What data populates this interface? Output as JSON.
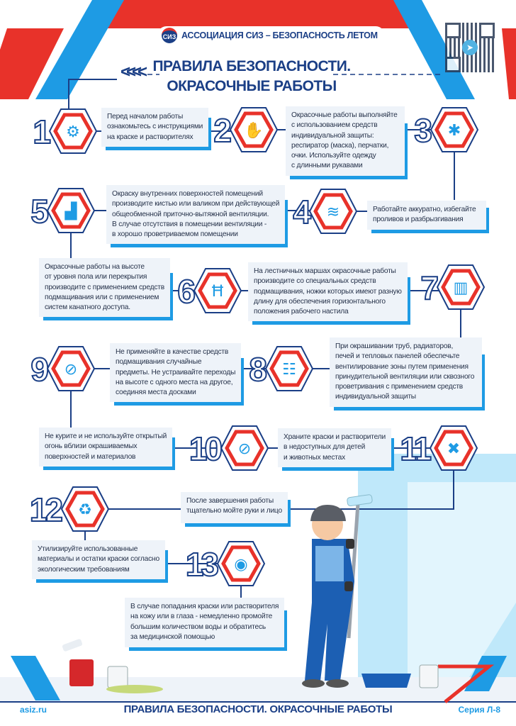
{
  "header": {
    "organization": "АССОЦИАЦИЯ СИЗ – БЕЗОПАСНОСТЬ ЛЕТОМ",
    "logo_text": "СИЗ",
    "title_line1": "ПРАВИЛА БЕЗОПАСНОСТИ.",
    "title_line2": "ОКРАСОЧНЫЕ РАБОТЫ",
    "chevrons": "<<<<",
    "qr_icon": "telegram-qr-code"
  },
  "badges": [
    {
      "number": "1",
      "icon": "manual-book-icon",
      "glyph": "⚙"
    },
    {
      "number": "2",
      "icon": "goggles-gloves-icon",
      "glyph": "✋"
    },
    {
      "number": "3",
      "icon": "splash-icon",
      "glyph": "✱"
    },
    {
      "number": "4",
      "icon": "ventilation-icon",
      "glyph": "≋"
    },
    {
      "number": "5",
      "icon": "paint-brush-icon",
      "glyph": "▟"
    },
    {
      "number": "6",
      "icon": "stepladder-icon",
      "glyph": "Ħ"
    },
    {
      "number": "7",
      "icon": "radiator-icon",
      "glyph": "▥"
    },
    {
      "number": "8",
      "icon": "ladder-icon",
      "glyph": "☷"
    },
    {
      "number": "9",
      "icon": "cigarette-icon",
      "glyph": "⊘"
    },
    {
      "number": "10",
      "icon": "no-fire-icon",
      "glyph": "⊘"
    },
    {
      "number": "11",
      "icon": "paint-storage-icon",
      "glyph": "✖"
    },
    {
      "number": "12",
      "icon": "recycle-bin-icon",
      "glyph": "♻"
    },
    {
      "number": "13",
      "icon": "eye-drop-icon",
      "glyph": "◉"
    }
  ],
  "rules": [
    "Перед началом работы\nознакомьтесь с инструкциями\nна краске и растворителях",
    "Окрасочные работы выполняйте\nс использованием средств\nиндивидуальной защиты:\nреспиратор (маска), перчатки,\nочки. Используйте одежду\nс длинными рукавами",
    "Работайте аккуратно, избегайте\nпроливов и разбрызгивания",
    "Окраску внутренних поверхностей помещений\nпроизводите кистью или валиком при действующей\nобщеобменной приточно-вытяжной вентиляции.\nВ случае отсутствия в помещении вентиляции -\nв хорошо проветриваемом помещении",
    "Окрасочные работы на высоте\nот уровня пола или перекрытия\nпроизводите с применением средств\nподмащивания или с применением\nсистем канатного доступа.",
    "На лестничных маршах окрасочные работы\nпроизводите со специальных средств\nподмащивания, ножки которых имеют разную\nдлину для обеспечения горизонтального\nположения рабочего настила",
    "При окрашивании труб, радиаторов,\nпечей и тепловых панелей обеспечьте\nвентилирование зоны путем применения\nпринудительной вентиляции или сквозного\nпроветривания с применением средств\nиндивидуальной защиты",
    "Не применяйте в качестве средств\nподмащивания случайные\nпредметы. Не устраивайте переходы\nна высоте с одного места на другое,\nсоединяя места досками",
    "Не курите и не используйте открытый\nогонь вблизи окрашиваемых\nповерхностей и материалов",
    "Храните краски и растворители\nв недоступных для детей\nи животных местах",
    "После завершения работы\nтщательно мойте руки и лицо",
    "Утилизируйте использованные\nматериалы и остатки краски согласно\nэкологическим требованиям",
    "В случае попадания краски или растворителя\nна кожу или в глаза - немедленно промойте\nбольшим количеством воды и обратитесь\nза медицинской помощью"
  ],
  "footer": {
    "website": "asiz.ru",
    "title": "ПРАВИЛА БЕЗОПАСНОСТИ. ОКРАСОЧНЫЕ РАБОТЫ",
    "series": "Серия Л-8"
  },
  "colors": {
    "navy": "#1b3f86",
    "red": "#e8322a",
    "blue": "#1e9be4",
    "wall": "#bfe8fa"
  }
}
